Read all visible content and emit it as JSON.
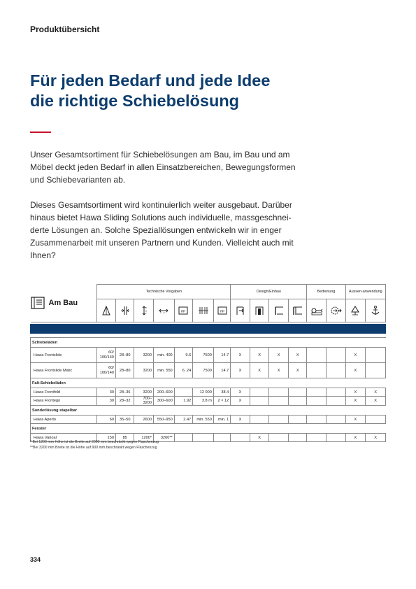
{
  "header": {
    "section": "Produktübersicht"
  },
  "headline": {
    "line1": "Für jeden Bedarf und jede Idee",
    "line2": "die richtige Schiebelösung"
  },
  "intro": {
    "p1": "Unser Gesamtsortiment für Schiebelösungen am Bau, im Bau und am Möbel deckt jeden Bedarf in allen Einsatzbereichen, Bewegungsformen und Schiebevarianten ab.",
    "p2": "Dieses Gesamtsortiment wird kontinuierlich weiter ausgebaut. Darüber hinaus bietet Hawa Sliding Solutions auch individuelle, massgeschnei-derte Lösungen an. Solche Speziallösungen entwickeln wir in enger Zusammenarbeit mit unseren Partnern und Kunden. Vielleicht auch mit Ihnen?"
  },
  "table": {
    "title": "Am Bau",
    "categories": {
      "technische": "Technische Vorgaben",
      "design": "Design/Einbau",
      "bedienung": "Bedienung",
      "aussen": "Aussen-anwendung"
    },
    "icons": {
      "c1": "weight-icon",
      "c2": "thickness-icon",
      "c3": "height-icon",
      "c4": "width-icon",
      "c5": "area-icon",
      "c6": "span-icon",
      "c7": "area-icon-2",
      "c8": "door-in-icon",
      "c9": "door-open-icon",
      "c10": "rail-icon",
      "c11": "rail-icon-2",
      "c12": "handle-icon",
      "c13": "motor-icon",
      "c14": "tree-icon",
      "c15": "anchor-icon"
    },
    "groups": {
      "g1": "Schiebeläden",
      "g2": "Falt-Schiebeläden",
      "g3": "Sonderlösung stapelbar",
      "g4": "Fenster"
    },
    "rows": {
      "r1": {
        "name": "Hawa Frontslide",
        "c1": "60/ 100/140",
        "c2": "28–80",
        "c3": "3200",
        "c4": "min. 400",
        "c5": "9.6",
        "c6": "7500",
        "c7": "14.7",
        "d1": "X",
        "d2": "X",
        "d3": "X",
        "d4": "X",
        "a1": "X"
      },
      "r2": {
        "name": "Hawa Frontslide Matic",
        "c1": "60/ 100/140",
        "c2": "28–80",
        "c3": "3200",
        "c4": "min. 550",
        "c5": "6..24",
        "c6": "7500",
        "c7": "14.7",
        "d1": "X",
        "d2": "X",
        "d3": "X",
        "d4": "X",
        "a1": "X"
      },
      "r3": {
        "name": "Hawa Frontfold",
        "c1": "30",
        "c2": "28–36",
        "c3": "3200",
        "c4": "200–600",
        "c6": "12 000",
        "c7": "38.4",
        "d1": "X",
        "a1": "X",
        "a2": "X"
      },
      "r4": {
        "name": "Hawa Frontego",
        "c1": "30",
        "c2": "28–32",
        "c3": "700–3200",
        "c4": "300–600",
        "c5": "1.92",
        "c6": "3.8 m",
        "c7": "2 × 12",
        "d1": "X",
        "a1": "X",
        "a2": "X"
      },
      "r5": {
        "name": "Hawa Aperto",
        "c1": "60",
        "c2": "35–50",
        "c3": "2600",
        "c4": "550–950",
        "c5": "2.47",
        "c6": "min. 550",
        "c7": "min. 1",
        "d1": "X",
        "a1": "X"
      },
      "r6": {
        "name": "Hawa Varioal",
        "c1": "150",
        "c2": "85",
        "c3": "1200*",
        "c4": "3200**",
        "d2": "X",
        "a1": "X",
        "a2": "X"
      }
    }
  },
  "footnotes": {
    "f1": "* Bei 1200 mm Höhe ist die Breite auf 2000 mm beschränkt wegen Flaschenzug",
    "f2": "**Bei 3200 mm Breite ist die Höhe auf 900 mm beschränkt wegen Flaschenzug"
  },
  "page": {
    "number": "334"
  },
  "colors": {
    "brand_blue": "#0d3d6e",
    "accent_red": "#c8102e"
  }
}
